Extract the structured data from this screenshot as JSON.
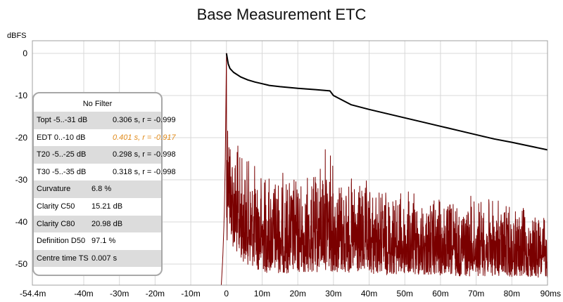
{
  "title": "Base Measurement ETC",
  "chart_data": {
    "type": "line",
    "title": "Base Measurement ETC",
    "ylabel": "dBFS",
    "xlabel": "",
    "x_unit": "s",
    "xlim": [
      -0.0544,
      0.09
    ],
    "ylim": [
      -55,
      3
    ],
    "grid": true,
    "x_ticks": [
      {
        "value": -0.0544,
        "label": "-54.4m"
      },
      {
        "value": -0.04,
        "label": "-40m"
      },
      {
        "value": -0.03,
        "label": "-30m"
      },
      {
        "value": -0.02,
        "label": "-20m"
      },
      {
        "value": -0.01,
        "label": "-10m"
      },
      {
        "value": 0.0,
        "label": "0"
      },
      {
        "value": 0.01,
        "label": "10m"
      },
      {
        "value": 0.02,
        "label": "20m"
      },
      {
        "value": 0.03,
        "label": "30m"
      },
      {
        "value": 0.04,
        "label": "40m"
      },
      {
        "value": 0.05,
        "label": "50m"
      },
      {
        "value": 0.06,
        "label": "60m"
      },
      {
        "value": 0.07,
        "label": "70m"
      },
      {
        "value": 0.08,
        "label": "80m"
      },
      {
        "value": 0.09,
        "label": "90ms"
      }
    ],
    "y_ticks": [
      {
        "value": 0,
        "label": "0"
      },
      {
        "value": -10,
        "label": "-10"
      },
      {
        "value": -20,
        "label": "-20"
      },
      {
        "value": -30,
        "label": "-30"
      },
      {
        "value": -40,
        "label": "-40"
      },
      {
        "value": -50,
        "label": "-50"
      }
    ],
    "series": [
      {
        "color": "#7a0000",
        "style": "etc-envelope",
        "x": [
          -0.0015,
          -0.001,
          -0.0006,
          -0.0003,
          -0.0001,
          0.0,
          0.0004,
          0.001,
          0.002,
          0.004,
          0.006,
          0.008,
          0.01,
          0.015,
          0.02,
          0.025,
          0.028,
          0.03,
          0.035,
          0.04,
          0.045,
          0.05,
          0.055,
          0.06,
          0.065,
          0.07,
          0.075,
          0.08,
          0.085,
          0.09
        ],
        "upper": [
          -56,
          -48,
          -38,
          -24,
          -8,
          0,
          -6,
          -14,
          -18,
          -22,
          -24,
          -25,
          -26,
          -27,
          -28,
          -28,
          -18,
          -25,
          -29,
          -30,
          -31,
          -32,
          -33,
          -34,
          -34,
          -33,
          -34,
          -35,
          -37,
          -38
        ],
        "lower": [
          -56,
          -56,
          -56,
          -56,
          -56,
          -56,
          -42,
          -46,
          -50,
          -52,
          -53,
          -54,
          -55,
          -55,
          -55,
          -55,
          -55,
          -55,
          -55,
          -55,
          -55,
          -55,
          -55,
          -55,
          -55,
          -55,
          -55,
          -55,
          -55,
          -55
        ]
      },
      {
        "color": "#000000",
        "style": "schroeder",
        "x": [
          0.0,
          0.0005,
          0.001,
          0.002,
          0.004,
          0.006,
          0.008,
          0.01,
          0.012,
          0.015,
          0.02,
          0.025,
          0.029,
          0.03,
          0.035,
          0.04,
          0.045,
          0.05,
          0.055,
          0.06,
          0.065,
          0.07,
          0.075,
          0.08,
          0.085,
          0.09
        ],
        "y": [
          0.0,
          -2.5,
          -3.6,
          -4.5,
          -5.6,
          -6.3,
          -6.8,
          -7.2,
          -7.6,
          -7.9,
          -8.3,
          -8.6,
          -8.9,
          -10.0,
          -12.2,
          -13.3,
          -14.3,
          -15.3,
          -16.3,
          -17.3,
          -18.3,
          -19.3,
          -20.3,
          -21.1,
          -22.0,
          -22.9
        ]
      }
    ]
  },
  "info_panel": {
    "header": "No Filter",
    "rows": [
      {
        "label": "Topt -5..-31 dB",
        "value": "0.306 s,  r = -0.999",
        "highlight": false
      },
      {
        "label": "EDT  0..-10 dB",
        "value": "0.401 s,  r = -0.917",
        "highlight": true
      },
      {
        "label": "T20 -5..-25 dB",
        "value": "0.298 s,  r = -0.998",
        "highlight": false
      },
      {
        "label": "T30 -5..-35 dB",
        "value": "0.318 s,  r = -0.998",
        "highlight": false
      },
      {
        "label": "Curvature",
        "value": "6.8 %",
        "highlight": false
      },
      {
        "label": "Clarity C50",
        "value": "15.21 dB",
        "highlight": false
      },
      {
        "label": "Clarity C80",
        "value": "20.98 dB",
        "highlight": false
      },
      {
        "label": "Definition D50",
        "value": "97.1 %",
        "highlight": false
      },
      {
        "label": "Centre time TS",
        "value": "0.007 s",
        "highlight": false
      }
    ]
  },
  "colors": {
    "etc_trace": "#7a0000",
    "schroeder": "#000000",
    "highlight_text": "#e08a1a",
    "grid": "#d8d8d8",
    "panel_border": "#a8a8a8"
  }
}
